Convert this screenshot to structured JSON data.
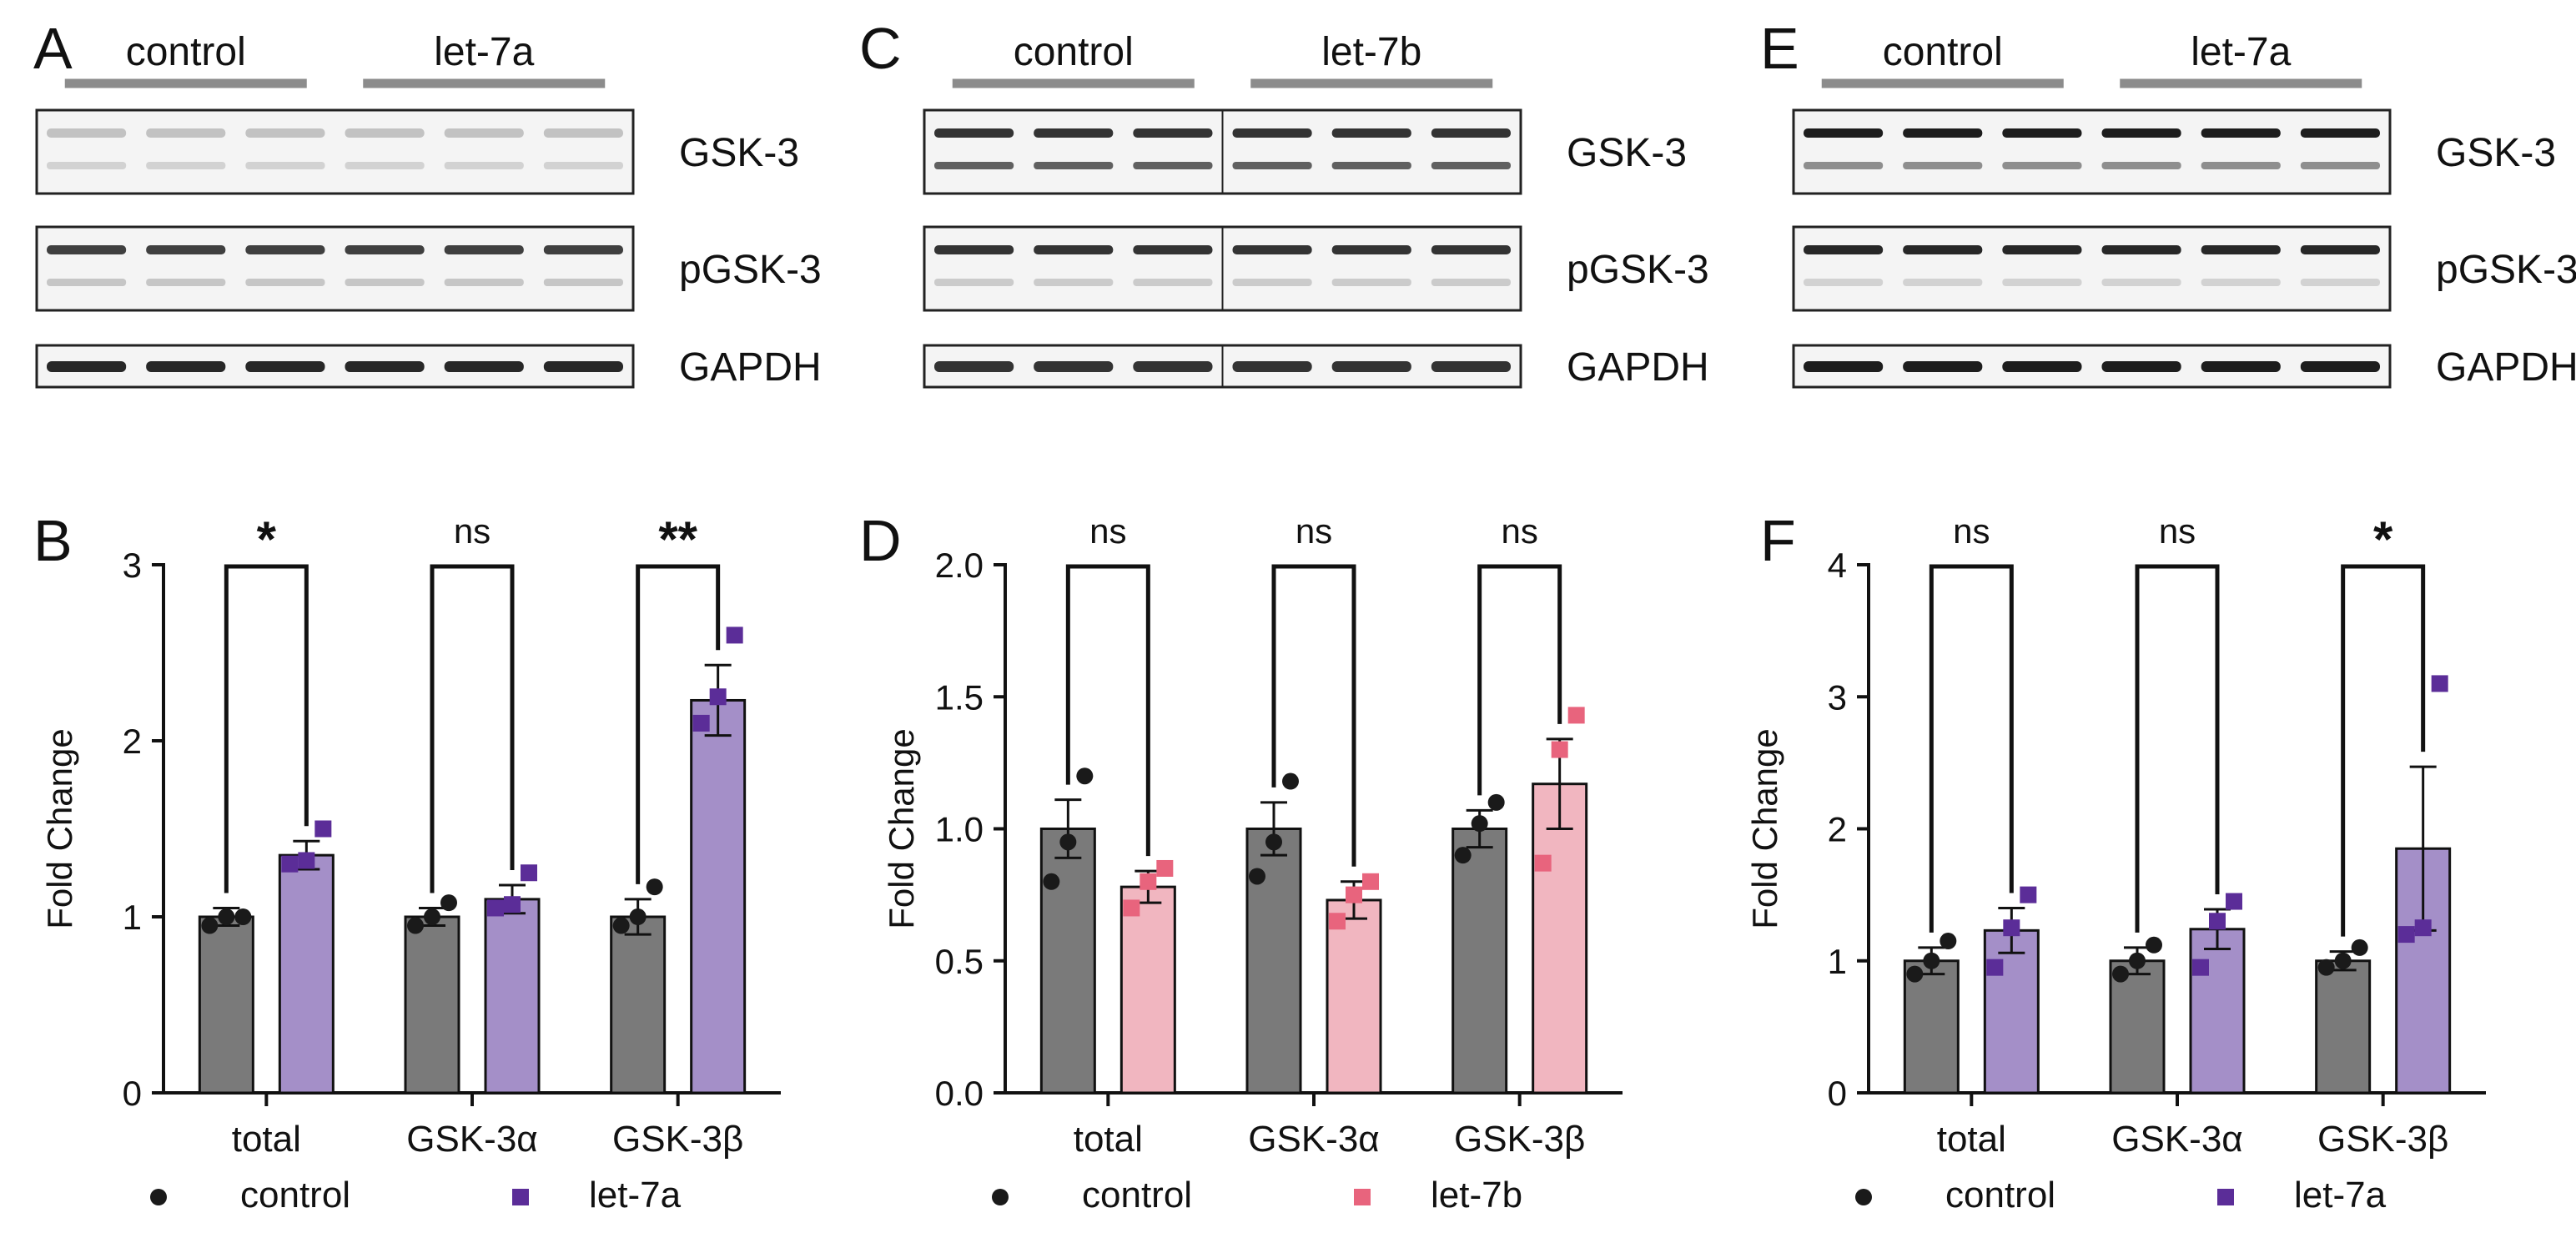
{
  "colors": {
    "control_bar": "#7a7a7a",
    "control_point": "#1a1a1a",
    "let7a_bar": "#a48fc8",
    "let7a_point": "#5b2d98",
    "let7b_bar": "#f1b6c0",
    "let7b_point": "#e8647d",
    "group_line": "#8c8c8c"
  },
  "blots": [
    {
      "letter": "A",
      "groups": [
        "control",
        "let-7a"
      ],
      "divider": false,
      "rows": [
        {
          "label": "GSK-3",
          "bands": 2,
          "band1": 0.22,
          "band2": 0.15
        },
        {
          "label": "pGSK-3",
          "bands": 2,
          "band1": 0.8,
          "band2": 0.2
        },
        {
          "label": "GAPDH",
          "bands": 1,
          "band1": 0.9,
          "band2": 0
        }
      ]
    },
    {
      "letter": "C",
      "groups": [
        "control",
        "let-7b"
      ],
      "divider": true,
      "rows": [
        {
          "label": "GSK-3",
          "bands": 2,
          "band1": 0.85,
          "band2": 0.65
        },
        {
          "label": "pGSK-3",
          "bands": 2,
          "band1": 0.85,
          "band2": 0.18
        },
        {
          "label": "GAPDH",
          "bands": 1,
          "band1": 0.85,
          "band2": 0
        }
      ]
    },
    {
      "letter": "E",
      "groups": [
        "control",
        "let-7a"
      ],
      "divider": false,
      "rows": [
        {
          "label": "GSK-3",
          "bands": 2,
          "band1": 0.95,
          "band2": 0.45
        },
        {
          "label": "pGSK-3",
          "bands": 2,
          "band1": 0.9,
          "band2": 0.15
        },
        {
          "label": "GAPDH",
          "bands": 1,
          "band1": 0.95,
          "band2": 0
        }
      ]
    }
  ],
  "chart_data": [
    {
      "panel": "B",
      "type": "bar",
      "ylabel": "Fold Change",
      "xlabel": "",
      "ylim": [
        0,
        3
      ],
      "yticks": [
        0,
        1,
        2,
        3
      ],
      "ytick_labels": [
        "0",
        "1",
        "2",
        "3"
      ],
      "categories": [
        "total",
        "GSK-3α",
        "GSK-3β"
      ],
      "significance": [
        "*",
        "ns",
        "**"
      ],
      "series": [
        {
          "name": "control",
          "color_key": "control",
          "values": [
            1.0,
            1.0,
            1.0
          ],
          "errors": [
            0.05,
            0.05,
            0.1
          ],
          "points": [
            [
              0.95,
              1.0,
              1.0
            ],
            [
              0.95,
              1.0,
              1.08
            ],
            [
              0.95,
              1.0,
              1.17
            ]
          ]
        },
        {
          "name": "let-7a",
          "color_key": "let7a",
          "values": [
            1.35,
            1.1,
            2.23
          ],
          "errors": [
            0.08,
            0.08,
            0.2
          ],
          "points": [
            [
              1.3,
              1.32,
              1.5
            ],
            [
              1.05,
              1.07,
              1.25
            ],
            [
              2.1,
              2.25,
              2.6
            ]
          ]
        }
      ],
      "legend": [
        "control",
        "let-7a"
      ]
    },
    {
      "panel": "D",
      "type": "bar",
      "ylabel": "Fold Change",
      "xlabel": "",
      "ylim": [
        0,
        2
      ],
      "yticks": [
        0,
        0.5,
        1,
        1.5,
        2
      ],
      "ytick_labels": [
        "0.0",
        "0.5",
        "1.0",
        "1.5",
        "2.0"
      ],
      "categories": [
        "total",
        "GSK-3α",
        "GSK-3β"
      ],
      "significance": [
        "ns",
        "ns",
        "ns"
      ],
      "series": [
        {
          "name": "control",
          "color_key": "control",
          "values": [
            1.0,
            1.0,
            1.0
          ],
          "errors": [
            0.11,
            0.1,
            0.07
          ],
          "points": [
            [
              0.8,
              0.95,
              1.2
            ],
            [
              0.82,
              0.95,
              1.18
            ],
            [
              0.9,
              1.02,
              1.1
            ]
          ]
        },
        {
          "name": "let-7b",
          "color_key": "let7b",
          "values": [
            0.78,
            0.73,
            1.17
          ],
          "errors": [
            0.06,
            0.07,
            0.17
          ],
          "points": [
            [
              0.7,
              0.8,
              0.85
            ],
            [
              0.65,
              0.75,
              0.8
            ],
            [
              0.87,
              1.3,
              1.43
            ]
          ]
        }
      ],
      "legend": [
        "control",
        "let-7b"
      ]
    },
    {
      "panel": "F",
      "type": "bar",
      "ylabel": "Fold Change",
      "xlabel": "",
      "ylim": [
        0,
        4
      ],
      "yticks": [
        0,
        1,
        2,
        3,
        4
      ],
      "ytick_labels": [
        "0",
        "1",
        "2",
        "3",
        "4"
      ],
      "categories": [
        "total",
        "GSK-3α",
        "GSK-3β"
      ],
      "significance": [
        "ns",
        "ns",
        "*"
      ],
      "series": [
        {
          "name": "control",
          "color_key": "control",
          "values": [
            1.0,
            1.0,
            1.0
          ],
          "errors": [
            0.1,
            0.1,
            0.07
          ],
          "points": [
            [
              0.9,
              1.0,
              1.15
            ],
            [
              0.9,
              1.0,
              1.12
            ],
            [
              0.95,
              1.0,
              1.1
            ]
          ]
        },
        {
          "name": "let-7a",
          "color_key": "let7a",
          "values": [
            1.23,
            1.24,
            1.85
          ],
          "errors": [
            0.17,
            0.15,
            0.62
          ],
          "points": [
            [
              0.95,
              1.25,
              1.5
            ],
            [
              0.95,
              1.3,
              1.45
            ],
            [
              1.2,
              1.25,
              3.1
            ]
          ]
        }
      ],
      "legend": [
        "control",
        "let-7a"
      ]
    }
  ]
}
